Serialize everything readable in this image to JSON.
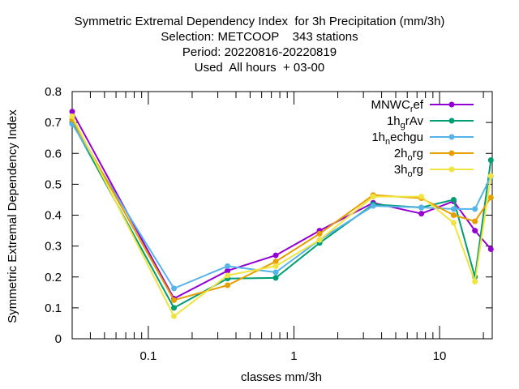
{
  "chart_data": {
    "type": "line",
    "title_lines": [
      "Symmetric Extremal Dependency Index  for 3h Precipitation (mm/3h)",
      "Selection: METCOOP    343 stations",
      "Period: 20220816-20220819",
      "Used  All hours  + 03-00"
    ],
    "xlabel": "classes mm/3h",
    "ylabel": "Symmetric Extremal Dependency Index",
    "x_scale": "log",
    "xlim": [
      0.03,
      23
    ],
    "ylim": [
      0,
      0.8
    ],
    "x_ticks": [
      0.1,
      1,
      10
    ],
    "x_tick_labels": [
      "0.1",
      "1",
      "10"
    ],
    "y_ticks": [
      0,
      0.1,
      0.2,
      0.3,
      0.4,
      0.5,
      0.6,
      0.7,
      0.8
    ],
    "y_tick_labels": [
      "0",
      "0.1",
      "0.2",
      "0.3",
      "0.4",
      "0.5",
      "0.6",
      "0.7",
      "0.8"
    ],
    "grid": false,
    "legend_position": "top-right",
    "x": [
      0.03,
      0.15,
      0.35,
      0.75,
      1.5,
      3.5,
      7.5,
      12.5,
      17.5,
      22.5
    ],
    "series": [
      {
        "name": "MNWC_ref",
        "label_main": "MNWC",
        "label_sub": "r",
        "label_tail": "ef",
        "color": "#9400d3",
        "values": [
          0.735,
          0.13,
          0.22,
          0.27,
          0.35,
          0.44,
          0.405,
          0.445,
          0.35,
          0.29
        ]
      },
      {
        "name": "1h_grAv",
        "label_main": "1h",
        "label_sub": "g",
        "label_tail": "rAv",
        "color": "#009e73",
        "values": [
          0.7,
          0.1,
          0.195,
          0.197,
          0.31,
          0.435,
          0.425,
          0.45,
          0.2,
          0.578
        ]
      },
      {
        "name": "1h_nechgu",
        "label_main": "1h",
        "label_sub": "n",
        "label_tail": "echgu",
        "color": "#56b4e9",
        "values": [
          0.695,
          0.163,
          0.235,
          0.215,
          0.32,
          0.43,
          0.425,
          0.42,
          0.42,
          0.525
        ]
      },
      {
        "name": "2h_org",
        "label_main": "2h",
        "label_sub": "o",
        "label_tail": "rg",
        "color": "#e69f00",
        "values": [
          0.71,
          0.125,
          0.173,
          0.25,
          0.34,
          0.465,
          0.455,
          0.4,
          0.38,
          0.457
        ]
      },
      {
        "name": "3h_org",
        "label_main": "3h",
        "label_sub": "o",
        "label_tail": "rg",
        "color": "#f0e442",
        "values": [
          0.72,
          0.073,
          0.205,
          0.235,
          0.32,
          0.46,
          0.46,
          0.375,
          0.185,
          0.527
        ]
      }
    ]
  }
}
